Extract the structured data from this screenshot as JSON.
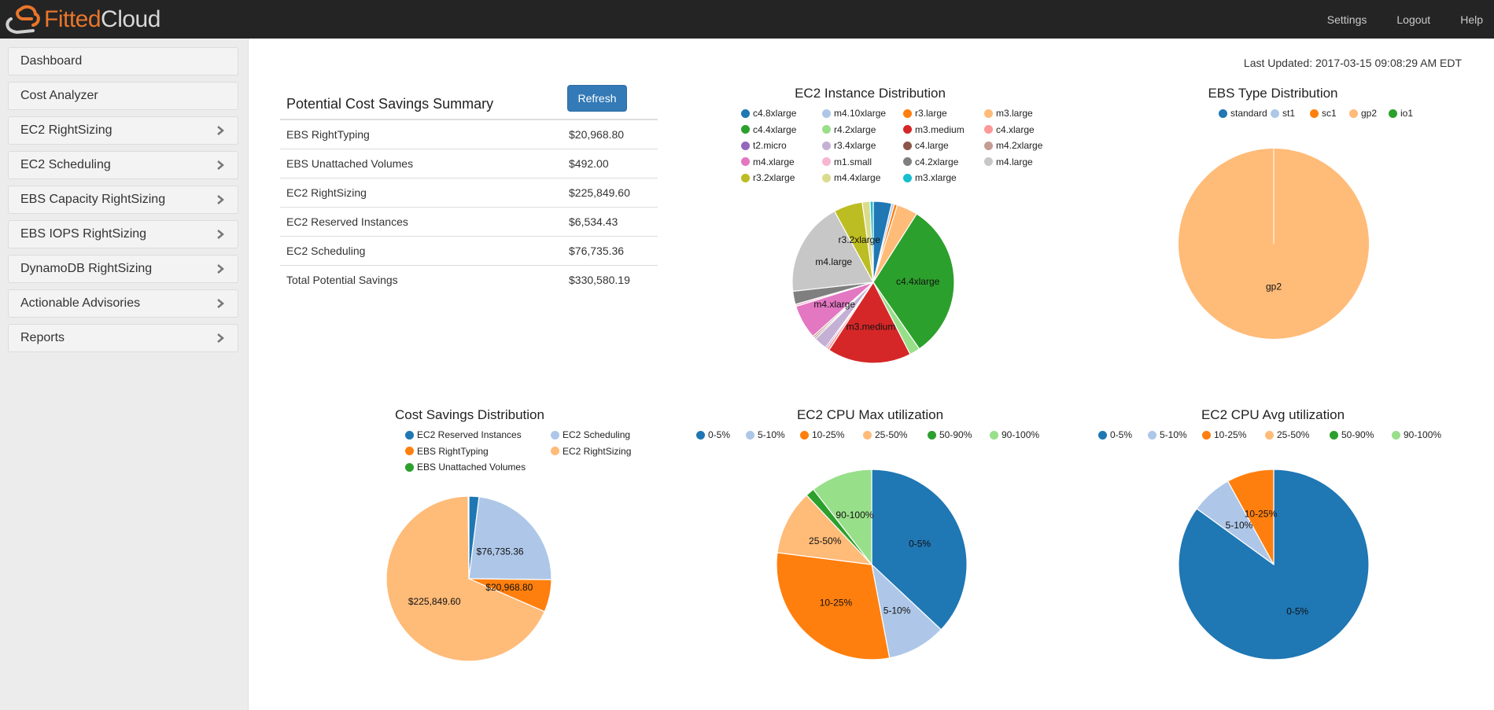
{
  "app": {
    "logo_part1": "Fitted",
    "logo_part2": "Cloud",
    "nav": [
      "Settings",
      "Logout",
      "Help"
    ]
  },
  "sidebar": {
    "items": [
      {
        "label": "Dashboard",
        "has_chevron": false
      },
      {
        "label": "Cost Analyzer",
        "has_chevron": false
      },
      {
        "label": "EC2 RightSizing",
        "has_chevron": true
      },
      {
        "label": "EC2 Scheduling",
        "has_chevron": true
      },
      {
        "label": "EBS Capacity RightSizing",
        "has_chevron": true
      },
      {
        "label": "EBS IOPS RightSizing",
        "has_chevron": true
      },
      {
        "label": "DynamoDB RightSizing",
        "has_chevron": true
      },
      {
        "label": "Actionable Advisories",
        "has_chevron": true
      },
      {
        "label": "Reports",
        "has_chevron": true
      }
    ]
  },
  "last_updated": "Last Updated: 2017-03-15 09:08:29 AM EDT",
  "summary": {
    "title": "Potential Cost Savings Summary",
    "refresh_label": "Refresh",
    "rows": [
      {
        "label": "EBS RightTyping",
        "value": "$20,968.80"
      },
      {
        "label": "EBS Unattached Volumes",
        "value": "$492.00"
      },
      {
        "label": "EC2 RightSizing",
        "value": "$225,849.60"
      },
      {
        "label": "EC2 Reserved Instances",
        "value": "$6,534.43"
      },
      {
        "label": "EC2 Scheduling",
        "value": "$76,735.36"
      },
      {
        "label": "Total Potential Savings",
        "value": "$330,580.19"
      }
    ]
  },
  "colors": {
    "accent": "#337ab7",
    "palette": [
      "#1f77b4",
      "#aec7e8",
      "#ff7f0e",
      "#ffbb78",
      "#2ca02c",
      "#98df8a",
      "#d62728",
      "#ff9896",
      "#9467bd",
      "#c5b0d5",
      "#8c564b",
      "#c49c94",
      "#e377c2",
      "#f7b6d2",
      "#7f7f7f",
      "#c7c7c7",
      "#bcbd22",
      "#dbdb8d",
      "#17becf"
    ]
  },
  "chart_data": [
    {
      "id": "ec2-instance",
      "type": "pie",
      "title": "EC2 Instance Distribution",
      "legend_columns": 4,
      "slices": [
        {
          "label": "c4.8xlarge",
          "value": 3.5,
          "color": "#1f77b4"
        },
        {
          "label": "m4.10xlarge",
          "value": 0.5,
          "color": "#aec7e8"
        },
        {
          "label": "r3.large",
          "value": 0.6,
          "color": "#ff7f0e"
        },
        {
          "label": "m3.large",
          "value": 4.0,
          "color": "#ffbb78"
        },
        {
          "label": "c4.4xlarge",
          "value": 30.0,
          "color": "#2ca02c",
          "show_label": true
        },
        {
          "label": "r4.2xlarge",
          "value": 2.0,
          "color": "#98df8a"
        },
        {
          "label": "m3.medium",
          "value": 16.0,
          "color": "#d62728",
          "show_label": true
        },
        {
          "label": "c4.xlarge",
          "value": 0.5,
          "color": "#ff9896"
        },
        {
          "label": "t2.micro",
          "value": 0.3,
          "color": "#9467bd"
        },
        {
          "label": "r3.4xlarge",
          "value": 2.5,
          "color": "#c5b0d5"
        },
        {
          "label": "c4.large",
          "value": 0.3,
          "color": "#8c564b"
        },
        {
          "label": "m4.2xlarge",
          "value": 0.4,
          "color": "#c49c94"
        },
        {
          "label": "m4.xlarge",
          "value": 6.5,
          "color": "#e377c2",
          "show_label": true
        },
        {
          "label": "m1.small",
          "value": 0.4,
          "color": "#f7b6d2"
        },
        {
          "label": "c4.2xlarge",
          "value": 2.5,
          "color": "#7f7f7f"
        },
        {
          "label": "m4.large",
          "value": 18.0,
          "color": "#c7c7c7",
          "show_label": true
        },
        {
          "label": "r3.2xlarge",
          "value": 5.5,
          "color": "#bcbd22",
          "show_label": true
        },
        {
          "label": "m4.4xlarge",
          "value": 1.5,
          "color": "#dbdb8d"
        },
        {
          "label": "m3.xlarge",
          "value": 0.6,
          "color": "#17becf"
        }
      ]
    },
    {
      "id": "ebs-type",
      "type": "pie",
      "title": "EBS Type Distribution",
      "legend_columns": 5,
      "slices": [
        {
          "label": "standard",
          "value": 0,
          "color": "#1f77b4"
        },
        {
          "label": "st1",
          "value": 0,
          "color": "#aec7e8"
        },
        {
          "label": "sc1",
          "value": 0,
          "color": "#ff7f0e"
        },
        {
          "label": "gp2",
          "value": 100,
          "color": "#ffbb78",
          "show_label": true
        },
        {
          "label": "io1",
          "value": 0,
          "color": "#2ca02c"
        }
      ]
    },
    {
      "id": "cost-savings",
      "type": "pie",
      "title": "Cost Savings Distribution",
      "legend_columns": 2,
      "slices": [
        {
          "label": "EC2 Reserved Instances",
          "value": 6534.43,
          "color": "#1f77b4"
        },
        {
          "label": "EC2 Scheduling",
          "value": 76735.36,
          "color": "#aec7e8",
          "show_label": true,
          "slice_label": "$76,735.36"
        },
        {
          "label": "EBS RightTyping",
          "value": 20968.8,
          "color": "#ff7f0e",
          "show_label": true,
          "slice_label": "$20,968.80"
        },
        {
          "label": "EC2 RightSizing",
          "value": 225849.6,
          "color": "#ffbb78",
          "show_label": true,
          "slice_label": "$225,849.60"
        },
        {
          "label": "EBS Unattached Volumes",
          "value": 492.0,
          "color": "#2ca02c"
        }
      ]
    },
    {
      "id": "cpu-max",
      "type": "pie",
      "title": "EC2 CPU Max utilization",
      "legend_columns": 6,
      "slices": [
        {
          "label": "0-5%",
          "value": 37,
          "color": "#1f77b4",
          "show_label": true
        },
        {
          "label": "5-10%",
          "value": 10,
          "color": "#aec7e8",
          "show_label": true
        },
        {
          "label": "10-25%",
          "value": 30,
          "color": "#ff7f0e",
          "show_label": true
        },
        {
          "label": "25-50%",
          "value": 11,
          "color": "#ffbb78",
          "show_label": true
        },
        {
          "label": "50-90%",
          "value": 1.5,
          "color": "#2ca02c"
        },
        {
          "label": "90-100%",
          "value": 10.5,
          "color": "#98df8a",
          "show_label": true
        }
      ]
    },
    {
      "id": "cpu-avg",
      "type": "pie",
      "title": "EC2 CPU Avg utilization",
      "legend_columns": 6,
      "slices": [
        {
          "label": "0-5%",
          "value": 85,
          "color": "#1f77b4",
          "show_label": true
        },
        {
          "label": "5-10%",
          "value": 7,
          "color": "#aec7e8",
          "show_label": true
        },
        {
          "label": "10-25%",
          "value": 8,
          "color": "#ff7f0e",
          "show_label": true
        },
        {
          "label": "25-50%",
          "value": 0,
          "color": "#ffbb78"
        },
        {
          "label": "50-90%",
          "value": 0,
          "color": "#2ca02c"
        },
        {
          "label": "90-100%",
          "value": 0,
          "color": "#98df8a"
        }
      ]
    }
  ]
}
